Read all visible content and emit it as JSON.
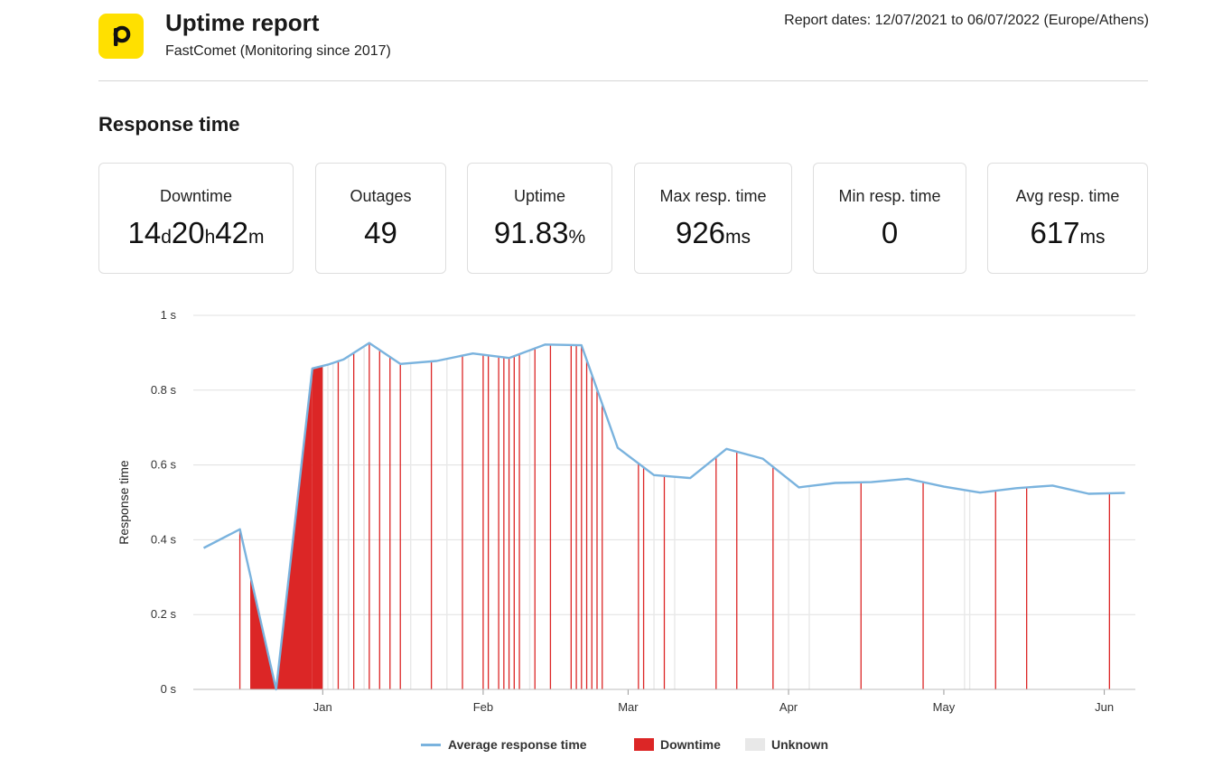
{
  "header": {
    "title": "Uptime report",
    "subtitle": "FastComet (Monitoring since 2017)",
    "dates": "Report dates: 12/07/2021 to 06/07/2022 (Europe/Athens)",
    "logo_color": "#ffe000"
  },
  "section_title": "Response time",
  "stats": {
    "downtime": {
      "label": "Downtime",
      "d": "14",
      "d_unit": "d",
      "h": "20",
      "h_unit": "h",
      "m": "42",
      "m_unit": "m"
    },
    "outages": {
      "label": "Outages",
      "value": "49"
    },
    "uptime": {
      "label": "Uptime",
      "value": "91.83",
      "unit": "%"
    },
    "max": {
      "label": "Max resp. time",
      "value": "926",
      "unit": "ms"
    },
    "min": {
      "label": "Min resp. time",
      "value": "0"
    },
    "avg": {
      "label": "Avg resp. time",
      "value": "617",
      "unit": "ms"
    }
  },
  "chart_data": {
    "type": "line",
    "ylabel": "Response time",
    "ylim": [
      0,
      1
    ],
    "yticks": [
      {
        "v": 0,
        "label": "0 s"
      },
      {
        "v": 0.2,
        "label": "0.2 s"
      },
      {
        "v": 0.4,
        "label": "0.4 s"
      },
      {
        "v": 0.6,
        "label": "0.6 s"
      },
      {
        "v": 0.8,
        "label": "0.8 s"
      },
      {
        "v": 1,
        "label": "1 s"
      }
    ],
    "xlim": [
      "2021-12-07",
      "2022-06-07"
    ],
    "xticks": [
      {
        "date": "2022-01-01",
        "label": "Jan"
      },
      {
        "date": "2022-02-01",
        "label": "Feb"
      },
      {
        "date": "2022-03-01",
        "label": "Mar"
      },
      {
        "date": "2022-04-01",
        "label": "Apr"
      },
      {
        "date": "2022-05-01",
        "label": "May"
      },
      {
        "date": "2022-06-01",
        "label": "Jun"
      }
    ],
    "grid": true,
    "legend_position": "bottom",
    "colors": {
      "line": "#7ab3de",
      "downtime": "#dc2626",
      "unknown": "#e8e8e8",
      "grid": "#e0e0e0"
    },
    "series": [
      {
        "name": "Average response time",
        "points": [
          [
            "2021-12-09",
            0.378
          ],
          [
            "2021-12-16",
            0.428
          ],
          [
            "2021-12-23",
            0.0
          ],
          [
            "2021-12-30",
            0.858
          ],
          [
            "2022-01-02",
            0.868
          ],
          [
            "2022-01-05",
            0.882
          ],
          [
            "2022-01-10",
            0.926
          ],
          [
            "2022-01-16",
            0.87
          ],
          [
            "2022-01-23",
            0.878
          ],
          [
            "2022-01-30",
            0.898
          ],
          [
            "2022-02-06",
            0.886
          ],
          [
            "2022-02-13",
            0.922
          ],
          [
            "2022-02-20",
            0.92
          ],
          [
            "2022-02-27",
            0.646
          ],
          [
            "2022-03-06",
            0.573
          ],
          [
            "2022-03-13",
            0.565
          ],
          [
            "2022-03-20",
            0.643
          ],
          [
            "2022-03-27",
            0.617
          ],
          [
            "2022-04-03",
            0.54
          ],
          [
            "2022-04-10",
            0.552
          ],
          [
            "2022-04-17",
            0.554
          ],
          [
            "2022-04-24",
            0.563
          ],
          [
            "2022-05-01",
            0.542
          ],
          [
            "2022-05-08",
            0.526
          ],
          [
            "2022-05-15",
            0.538
          ],
          [
            "2022-05-22",
            0.545
          ],
          [
            "2022-05-29",
            0.523
          ],
          [
            "2022-06-05",
            0.525
          ]
        ]
      }
    ],
    "downtime_regions": [
      [
        "2021-12-18",
        "2021-12-23"
      ],
      [
        "2021-12-23",
        "2021-12-30"
      ],
      [
        "2021-12-30",
        "2022-01-01"
      ]
    ],
    "downtime_events": [
      "2021-12-16",
      "2022-01-04",
      "2022-01-07",
      "2022-01-10",
      "2022-01-12",
      "2022-01-14",
      "2022-01-16",
      "2022-01-22",
      "2022-01-28",
      "2022-02-01",
      "2022-02-02",
      "2022-02-04",
      "2022-02-05",
      "2022-02-06",
      "2022-02-07",
      "2022-02-08",
      "2022-02-11",
      "2022-02-14",
      "2022-02-18",
      "2022-02-19",
      "2022-02-20",
      "2022-02-21",
      "2022-02-22",
      "2022-02-23",
      "2022-02-24",
      "2022-03-03",
      "2022-03-04",
      "2022-03-08",
      "2022-03-18",
      "2022-03-22",
      "2022-03-29",
      "2022-04-15",
      "2022-04-27",
      "2022-05-11",
      "2022-05-17",
      "2022-06-02"
    ],
    "unknown_events": [
      "2022-01-01",
      "2022-01-02",
      "2022-01-03",
      "2022-01-06",
      "2022-01-09",
      "2022-01-18",
      "2022-01-25",
      "2022-02-10",
      "2022-03-06",
      "2022-03-10",
      "2022-04-01",
      "2022-04-05",
      "2022-05-05",
      "2022-05-06"
    ],
    "legend": [
      {
        "label": "Average response time",
        "kind": "line"
      },
      {
        "label": "Downtime",
        "kind": "box",
        "color": "#dc2626"
      },
      {
        "label": "Unknown",
        "kind": "box",
        "color": "#e8e8e8"
      }
    ]
  }
}
